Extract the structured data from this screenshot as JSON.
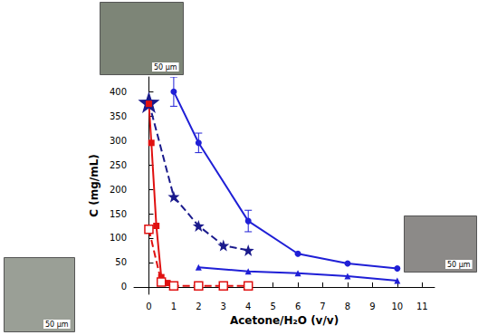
{
  "chart_data": {
    "type": "line",
    "x_label": "Acetone/H₂O (v/v)",
    "y_label": "C (mg/mL)",
    "xlim": [
      -0.6,
      11.5
    ],
    "xticks": [
      0,
      1,
      2,
      3,
      4,
      5,
      6,
      7,
      8,
      9,
      10,
      11
    ],
    "ylim": [
      -15,
      430
    ],
    "yticks": [
      0,
      50,
      100,
      150,
      200,
      250,
      300,
      350,
      400
    ],
    "grid": false,
    "series": [
      {
        "color": "#1f1fd6",
        "marker": "circle",
        "line_style": "solid",
        "x": [
          1,
          2,
          4,
          6,
          8,
          10
        ],
        "values": [
          400,
          295,
          135,
          68,
          48,
          38
        ],
        "errors": [
          30,
          20,
          22,
          null,
          null,
          null
        ]
      },
      {
        "color": "#1f1fd6",
        "marker": "triangle",
        "line_style": "solid",
        "x": [
          2,
          4,
          6,
          8,
          10
        ],
        "values": [
          40,
          32,
          28,
          22,
          13
        ]
      },
      {
        "color": "#1a1a8c",
        "marker": "star",
        "line_style": "dashed",
        "x": [
          0,
          1,
          2,
          3,
          4
        ],
        "values": [
          378,
          185,
          125,
          85,
          75
        ]
      },
      {
        "color": "#e01010",
        "marker": "square",
        "line_style": "solid",
        "x": [
          0,
          0.1,
          0.3,
          0.5,
          0.75,
          1
        ],
        "values": [
          375,
          295,
          125,
          20,
          8,
          3
        ]
      },
      {
        "color": "#e01010",
        "marker": "open_square",
        "line_style": "dashed",
        "x": [
          0,
          0.5,
          1,
          2,
          3,
          4
        ],
        "values": [
          118,
          10,
          2,
          2,
          2,
          2
        ]
      }
    ],
    "insets": [
      {
        "label": "50 µm"
      },
      {
        "label": "50 µm"
      },
      {
        "label": "50 µm"
      }
    ]
  }
}
